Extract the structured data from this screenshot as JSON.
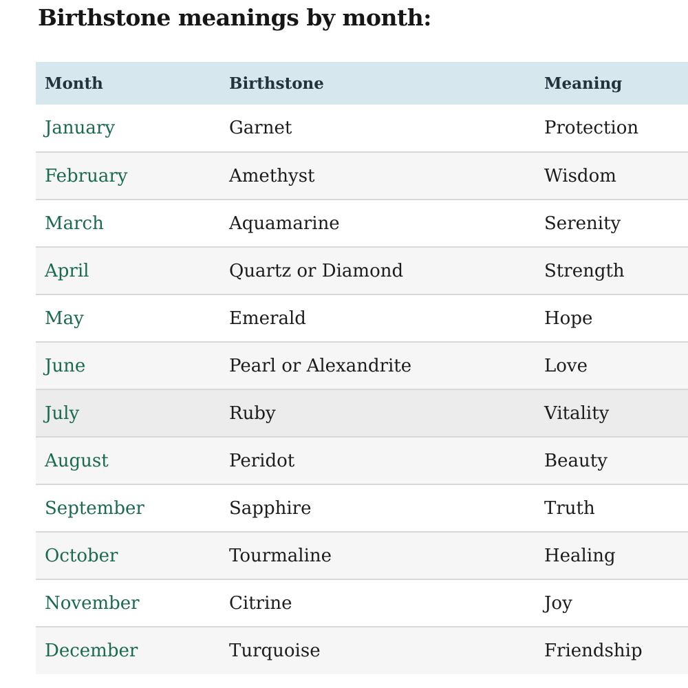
{
  "page": {
    "title": "Birthstone meanings by month:"
  },
  "table": {
    "headers": [
      "Month",
      "Birthstone",
      "Meaning"
    ],
    "rows": [
      {
        "month": "January",
        "birthstone": "Garnet",
        "meaning": "Protection"
      },
      {
        "month": "February",
        "birthstone": "Amethyst",
        "meaning": "Wisdom"
      },
      {
        "month": "March",
        "birthstone": "Aquamarine",
        "meaning": "Serenity"
      },
      {
        "month": "April",
        "birthstone": "Quartz or Diamond",
        "meaning": "Strength"
      },
      {
        "month": "May",
        "birthstone": "Emerald",
        "meaning": "Hope"
      },
      {
        "month": "June",
        "birthstone": "Pearl or Alexandrite",
        "meaning": "Love"
      },
      {
        "month": "July",
        "birthstone": "Ruby",
        "meaning": "Vitality"
      },
      {
        "month": "August",
        "birthstone": "Peridot",
        "meaning": "Beauty"
      },
      {
        "month": "September",
        "birthstone": "Sapphire",
        "meaning": "Truth"
      },
      {
        "month": "October",
        "birthstone": "Tourmaline",
        "meaning": "Healing"
      },
      {
        "month": "November",
        "birthstone": "Citrine",
        "meaning": "Joy"
      },
      {
        "month": "December",
        "birthstone": "Turquoise",
        "meaning": "Friendship"
      }
    ],
    "colors": {
      "header_bg": "#d7e7ee",
      "header_text": "#24323e",
      "row_alt_bg": "#f6f6f6",
      "row_hover_bg": "#ececec",
      "divider": "#d8d8d8",
      "month_link_green": "#1a6a52",
      "body_text": "#1c1c1c"
    }
  }
}
